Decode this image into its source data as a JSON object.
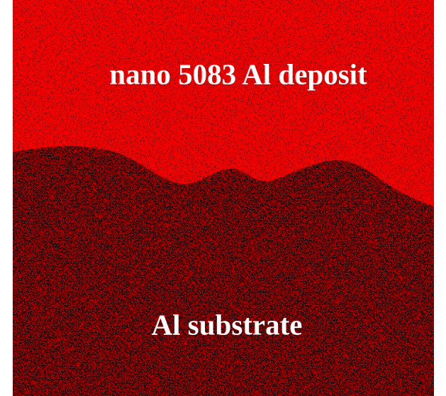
{
  "labels": {
    "top": "nano 5083 Al deposit",
    "bottom": "Al substrate"
  }
}
